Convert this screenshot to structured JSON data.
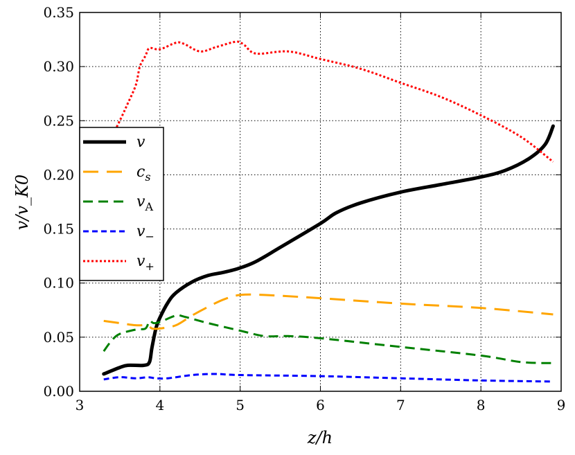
{
  "chart_data": {
    "type": "line",
    "xlabel": "z/h",
    "ylabel": "v/v_K0",
    "xlim": [
      3,
      9
    ],
    "ylim": [
      0,
      0.35
    ],
    "xticks": [
      "3",
      "4",
      "5",
      "6",
      "7",
      "8",
      "9"
    ],
    "yticks": [
      "0.00",
      "0.05",
      "0.10",
      "0.15",
      "0.20",
      "0.25",
      "0.30",
      "0.35"
    ],
    "grid": true,
    "legend_position": "center-left",
    "series": [
      {
        "name": "v",
        "label_main": "v",
        "label_sub": "",
        "color": "#000000",
        "style": "solid",
        "x": [
          3.3,
          3.5,
          3.6,
          3.8,
          3.87,
          3.9,
          3.95,
          4.0,
          4.1,
          4.2,
          4.4,
          4.6,
          4.8,
          5.0,
          5.2,
          5.5,
          6.0,
          6.2,
          6.5,
          7.0,
          7.5,
          8.0,
          8.3,
          8.6,
          8.8,
          8.9
        ],
        "y": [
          0.016,
          0.022,
          0.024,
          0.024,
          0.027,
          0.04,
          0.058,
          0.068,
          0.082,
          0.091,
          0.101,
          0.107,
          0.11,
          0.114,
          0.12,
          0.133,
          0.155,
          0.165,
          0.174,
          0.184,
          0.191,
          0.198,
          0.204,
          0.215,
          0.228,
          0.245
        ]
      },
      {
        "name": "c_s",
        "label_main": "c",
        "label_sub": "s",
        "color": "#FFA500",
        "style": "longdash",
        "x": [
          3.3,
          3.5,
          3.7,
          3.85,
          3.9,
          4.0,
          4.2,
          4.4,
          4.6,
          4.8,
          5.0,
          5.3,
          6.0,
          7.0,
          8.0,
          8.9
        ],
        "y": [
          0.065,
          0.063,
          0.061,
          0.061,
          0.058,
          0.058,
          0.061,
          0.07,
          0.078,
          0.085,
          0.089,
          0.089,
          0.086,
          0.081,
          0.077,
          0.071
        ]
      },
      {
        "name": "v_A",
        "label_main": "v",
        "label_sub": "A",
        "color": "#008000",
        "style": "dash",
        "x": [
          3.3,
          3.4,
          3.5,
          3.7,
          3.82,
          3.87,
          3.92,
          4.0,
          4.2,
          4.3,
          4.6,
          5.0,
          5.3,
          5.6,
          6.0,
          7.0,
          8.0,
          8.5,
          8.9
        ],
        "y": [
          0.037,
          0.047,
          0.053,
          0.057,
          0.058,
          0.065,
          0.063,
          0.064,
          0.07,
          0.069,
          0.063,
          0.056,
          0.051,
          0.051,
          0.049,
          0.041,
          0.033,
          0.027,
          0.026
        ]
      },
      {
        "name": "v_-",
        "label_main": "v",
        "label_sub": "−",
        "color": "#0000FF",
        "style": "shortdash",
        "x": [
          3.3,
          3.5,
          3.7,
          3.85,
          3.95,
          4.1,
          4.4,
          4.7,
          5.0,
          6.0,
          7.0,
          8.0,
          8.9
        ],
        "y": [
          0.011,
          0.013,
          0.012,
          0.013,
          0.012,
          0.012,
          0.015,
          0.016,
          0.015,
          0.014,
          0.012,
          0.01,
          0.009
        ]
      },
      {
        "name": "v_+",
        "label_main": "v",
        "label_sub": "+",
        "color": "#FF0000",
        "style": "dotted",
        "x": [
          3.3,
          3.5,
          3.6,
          3.7,
          3.75,
          3.82,
          3.87,
          4.0,
          4.2,
          4.3,
          4.5,
          4.7,
          4.95,
          5.05,
          5.2,
          5.6,
          6.0,
          6.5,
          7.0,
          7.5,
          8.0,
          8.5,
          8.9
        ],
        "y": [
          0.22,
          0.25,
          0.266,
          0.283,
          0.3,
          0.31,
          0.317,
          0.316,
          0.322,
          0.321,
          0.314,
          0.318,
          0.323,
          0.32,
          0.312,
          0.314,
          0.307,
          0.298,
          0.285,
          0.272,
          0.255,
          0.235,
          0.212
        ]
      }
    ]
  }
}
